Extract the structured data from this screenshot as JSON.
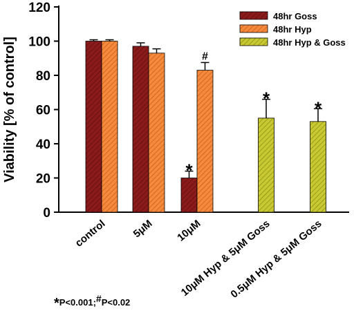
{
  "chart_data": {
    "type": "bar",
    "ylabel": "Viability [% of control]",
    "ylim": [
      0,
      120
    ],
    "yticks": [
      0,
      20,
      40,
      60,
      80,
      100,
      120
    ],
    "categories": [
      "control",
      "5μM",
      "10μM",
      "10μM Hyp & 5μM Goss",
      "0.5μM Hyp & 5μM Goss"
    ],
    "series": [
      {
        "name": "48hr Goss",
        "color": "#8b1a1a",
        "hatch": "#5a0e0e",
        "values": [
          100,
          97,
          20,
          null,
          null
        ],
        "errors": [
          0.8,
          2,
          4,
          null,
          null
        ],
        "marks": [
          "",
          "",
          "*",
          "",
          ""
        ]
      },
      {
        "name": "48hr Hyp",
        "color": "#f58a3c",
        "hatch": "#c45a1a",
        "values": [
          100,
          93,
          83,
          null,
          null
        ],
        "errors": [
          0.8,
          2.5,
          4.5,
          null,
          null
        ],
        "marks": [
          "",
          "",
          "#",
          "",
          ""
        ]
      },
      {
        "name": "48hr Hyp & Goss",
        "color": "#c8c832",
        "hatch": "#8a8a14",
        "values": [
          null,
          null,
          null,
          55,
          53
        ],
        "errors": [
          null,
          null,
          null,
          11,
          7.5
        ],
        "marks": [
          "",
          "",
          "",
          "*",
          "*"
        ]
      }
    ],
    "legend_position": "top-right",
    "footnote": {
      "star": "*",
      "star_text": "P<0.001;",
      "hash": "#",
      "hash_text": "P<0.02"
    }
  }
}
